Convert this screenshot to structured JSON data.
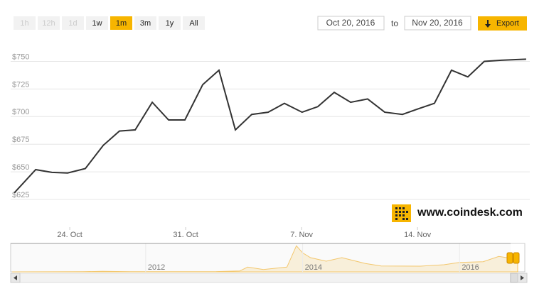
{
  "range_selector": {
    "buttons": [
      {
        "label": "1h",
        "state": "disabled"
      },
      {
        "label": "12h",
        "state": "disabled"
      },
      {
        "label": "1d",
        "state": "disabled"
      },
      {
        "label": "1w",
        "state": "normal"
      },
      {
        "label": "1m",
        "state": "selected"
      },
      {
        "label": "3m",
        "state": "normal"
      },
      {
        "label": "1y",
        "state": "normal"
      },
      {
        "label": "All",
        "state": "normal"
      }
    ]
  },
  "date_range": {
    "from": "Oct 20, 2016",
    "separator": "to",
    "to": "Nov 20, 2016"
  },
  "export": "Export",
  "watermark": "www.coindesk.com",
  "chart_data": [
    {
      "type": "line",
      "color": "#333333",
      "grid": true,
      "x": [
        0.65,
        1.94,
        2.92,
        3.87,
        4.94,
        6.02,
        7.0,
        7.95,
        8.98,
        9.97,
        10.95,
        12.03,
        13.01,
        14.0,
        14.99,
        15.98,
        16.96,
        18.03,
        18.98,
        19.97,
        20.96,
        21.99,
        23.02,
        24.09,
        25.03,
        26.02,
        27.05,
        28.04,
        29.03,
        30.06,
        31.56
      ],
      "values": [
        631,
        652,
        649.5,
        649,
        653,
        674,
        687,
        688,
        713,
        697,
        697,
        729,
        742,
        688,
        702,
        704,
        712,
        704,
        709,
        722,
        713,
        716,
        704,
        702,
        707,
        712,
        742,
        736,
        750,
        751,
        752
      ],
      "xlim": [
        0.43,
        31.78
      ],
      "xticks": [
        {
          "value": 4,
          "label": "24. Oct"
        },
        {
          "value": 11,
          "label": "31. Oct"
        },
        {
          "value": 18,
          "label": "7. Nov"
        },
        {
          "value": 25,
          "label": "14. Nov"
        }
      ],
      "ylim": [
        600,
        767
      ],
      "yticks": [
        {
          "value": 625,
          "label": "$625"
        },
        {
          "value": 650,
          "label": "$650"
        },
        {
          "value": 675,
          "label": "$675"
        },
        {
          "value": 700,
          "label": "$700"
        },
        {
          "value": 725,
          "label": "$725"
        },
        {
          "value": 750,
          "label": "$750"
        }
      ]
    },
    {
      "type": "area",
      "color": "#f7c35a",
      "x": [
        2010.3,
        2011.2,
        2011.45,
        2011.8,
        2012.3,
        2012.9,
        2013.2,
        2013.3,
        2013.5,
        2013.8,
        2013.92,
        2014.0,
        2014.1,
        2014.3,
        2014.5,
        2014.8,
        2015.0,
        2015.5,
        2015.8,
        2016.0,
        2016.3,
        2016.5,
        2016.6,
        2016.74
      ],
      "values": [
        0,
        5,
        25,
        5,
        6,
        12,
        40,
        200,
        100,
        200,
        1100,
        800,
        600,
        450,
        600,
        350,
        250,
        240,
        300,
        400,
        430,
        650,
        600,
        700
      ],
      "xlim": [
        2010.28,
        2016.74
      ],
      "xticks": [
        2012,
        2014,
        2016
      ],
      "ylim": [
        0,
        1200
      ]
    }
  ]
}
